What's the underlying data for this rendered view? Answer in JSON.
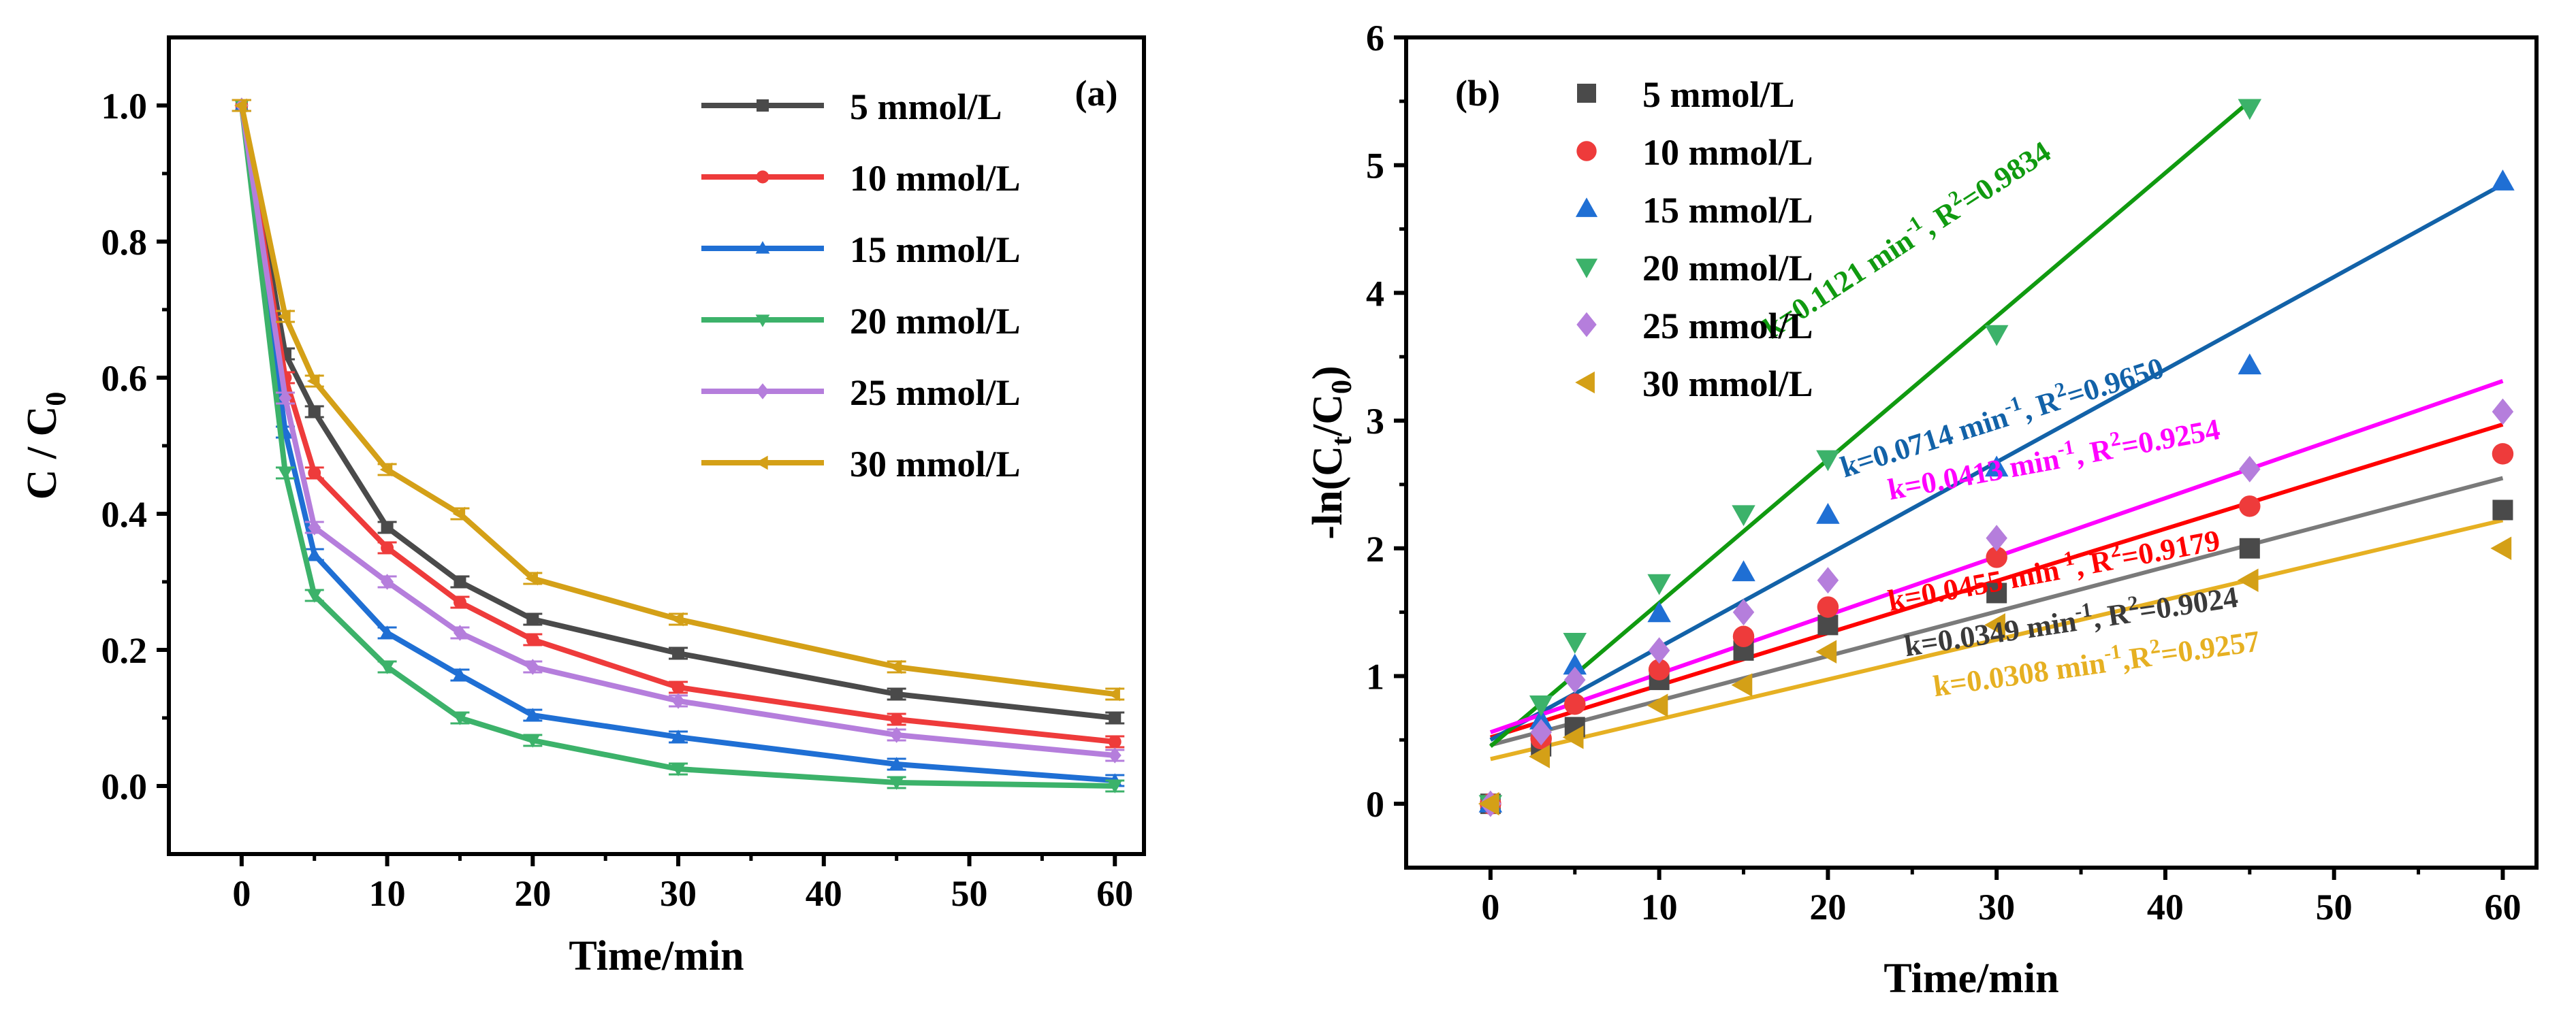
{
  "chart_data": [
    {
      "panel_label": "(a)",
      "type": "line",
      "xlabel": "Time/min",
      "ylabel": "C / C",
      "ylabel_sub": "0",
      "xlim": [
        -5,
        62
      ],
      "ylim": [
        -0.1,
        1.1
      ],
      "xticks": [
        0,
        10,
        20,
        30,
        40,
        50,
        60
      ],
      "xtick_labels": [
        "0",
        "10",
        "20",
        "30",
        "40",
        "50",
        "60"
      ],
      "yticks": [
        0.0,
        0.2,
        0.4,
        0.6,
        0.8,
        1.0
      ],
      "ytick_labels": [
        "0.0",
        "0.2",
        "0.4",
        "0.6",
        "0.8",
        "1.0"
      ],
      "legend_position": "top-right",
      "x": [
        0,
        3,
        5,
        10,
        15,
        20,
        30,
        45,
        60
      ],
      "series": [
        {
          "name": "5 mmol/L",
          "color": "#4a4a4a",
          "marker": "square",
          "values": [
            1.0,
            0.635,
            0.55,
            0.38,
            0.3,
            0.245,
            0.195,
            0.135,
            0.1
          ]
        },
        {
          "name": "10 mmol/L",
          "color": "#ee3b3b",
          "marker": "circle",
          "values": [
            1.0,
            0.6,
            0.46,
            0.35,
            0.27,
            0.215,
            0.145,
            0.098,
            0.065
          ]
        },
        {
          "name": "15 mmol/L",
          "color": "#1f6fd4",
          "marker": "triangle-up",
          "values": [
            1.0,
            0.52,
            0.34,
            0.225,
            0.163,
            0.104,
            0.072,
            0.032,
            0.008
          ]
        },
        {
          "name": "20 mmol/L",
          "color": "#3cb26a",
          "marker": "triangle-down",
          "values": [
            1.0,
            0.46,
            0.28,
            0.175,
            0.1,
            0.067,
            0.025,
            0.005,
            0.0
          ]
        },
        {
          "name": "25 mmol/L",
          "color": "#b57edc",
          "marker": "diamond",
          "values": [
            1.0,
            0.57,
            0.38,
            0.3,
            0.225,
            0.175,
            0.125,
            0.075,
            0.045
          ]
        },
        {
          "name": "30 mmol/L",
          "color": "#d4a017",
          "marker": "triangle-left",
          "values": [
            1.0,
            0.69,
            0.595,
            0.465,
            0.4,
            0.305,
            0.245,
            0.175,
            0.135
          ]
        }
      ]
    },
    {
      "panel_label": "(b)",
      "type": "scatter",
      "xlabel": "Time/min",
      "ylabel": "-ln(C",
      "ylabel_sub1": "t",
      "ylabel_mid": "/C",
      "ylabel_sub2": "0",
      "ylabel_end": ")",
      "xlim": [
        -5,
        62
      ],
      "ylim": [
        -0.5,
        6
      ],
      "xticks": [
        0,
        10,
        20,
        30,
        40,
        50,
        60
      ],
      "xtick_labels": [
        "0",
        "10",
        "20",
        "30",
        "40",
        "50",
        "60"
      ],
      "yticks": [
        0,
        1,
        2,
        3,
        4,
        5,
        6
      ],
      "ytick_labels": [
        "0",
        "1",
        "2",
        "3",
        "4",
        "5",
        "6"
      ],
      "legend_position": "top-left",
      "x": [
        0,
        3,
        5,
        10,
        15,
        20,
        30,
        45,
        60
      ],
      "series": [
        {
          "name": "5 mmol/L",
          "color": "#4a4a4a",
          "marker": "square",
          "values": [
            0,
            0.45,
            0.6,
            0.97,
            1.2,
            1.4,
            1.65,
            2.0,
            2.3
          ],
          "fit": {
            "x": [
              0,
              60
            ],
            "y": [
              0.46,
              2.55
            ],
            "line_color": "#7a7a7a",
            "label_color": "#3a3a3a",
            "k": "k=0.0349 min",
            "sup": "-1",
            "r2": ", R",
            "r2_sup": "2",
            "r2_val": "=0.9024",
            "angle": -8.5,
            "at_x": 34.5,
            "at_y": 1.35
          }
        },
        {
          "name": "10 mmol/L",
          "color": "#ee3b3b",
          "marker": "circle",
          "values": [
            0,
            0.51,
            0.78,
            1.05,
            1.31,
            1.54,
            1.93,
            2.33,
            2.74
          ],
          "fit": {
            "x": [
              0,
              60
            ],
            "y": [
              0.52,
              2.97
            ],
            "line_color": "#ff0000",
            "label_color": "#ff0000",
            "k": "k=0.0455 min",
            "sup": "-1",
            "r2": ", R",
            "r2_sup": "2",
            "r2_val": "=0.9179",
            "angle": -10.5,
            "at_x": 33.5,
            "at_y": 1.75
          }
        },
        {
          "name": "15 mmol/L",
          "color": "#1f6fd4",
          "marker": "triangle-up",
          "values": [
            0,
            0.65,
            1.08,
            1.49,
            1.81,
            2.26,
            2.63,
            3.43,
            4.87
          ],
          "fit": {
            "x": [
              0,
              60
            ],
            "y": [
              0.5,
              4.85
            ],
            "line_color": "#1262a8",
            "label_color": "#1262a8",
            "k": "k=0.0714 min",
            "sup": "-1",
            "r2": ", R",
            "r2_sup": "2",
            "r2_val": "=0.9650",
            "angle": -17.5,
            "at_x": 30.5,
            "at_y": 2.95
          }
        },
        {
          "name": "20 mmol/L",
          "color": "#3cb26a",
          "marker": "triangle-down",
          "values": [
            0,
            0.78,
            1.27,
            1.73,
            2.27,
            2.7,
            3.68,
            5.45,
            null
          ],
          "fit": {
            "x": [
              0,
              45
            ],
            "y": [
              0.45,
              5.5
            ],
            "line_color": "#109a10",
            "label_color": "#109a10",
            "k": "k=0.1121 min",
            "sup": "-1",
            "r2": ", R",
            "r2_sup": "2",
            "r2_val": "=0.9834",
            "angle": -33,
            "at_x": 25,
            "at_y": 4.35
          }
        },
        {
          "name": "25 mmol/L",
          "color": "#b57edc",
          "marker": "diamond",
          "values": [
            0,
            0.56,
            0.97,
            1.2,
            1.5,
            1.75,
            2.08,
            2.62,
            3.07
          ],
          "fit": {
            "x": [
              0,
              60
            ],
            "y": [
              0.56,
              3.31
            ],
            "line_color": "#ff00ff",
            "label_color": "#ff00ff",
            "k": "k=0.0413 min",
            "sup": "-1",
            "r2": ", R",
            "r2_sup": "2",
            "r2_val": "=0.9254",
            "angle": -10.5,
            "at_x": 33.5,
            "at_y": 2.62
          }
        },
        {
          "name": "30 mmol/L",
          "color": "#d4a017",
          "marker": "triangle-left",
          "values": [
            0,
            0.37,
            0.52,
            0.77,
            0.93,
            1.19,
            1.4,
            1.75,
            2.0
          ],
          "fit": {
            "x": [
              0,
              60
            ],
            "y": [
              0.35,
              2.22
            ],
            "line_color": "#e6b022",
            "label_color": "#e6b022",
            "k": "k=0.0308 min",
            "sup": "-1",
            "r2": ",R",
            "r2_sup": "2",
            "r2_val": "=0.9257",
            "angle": -8,
            "at_x": 36,
            "at_y": 1.02
          }
        }
      ]
    }
  ]
}
